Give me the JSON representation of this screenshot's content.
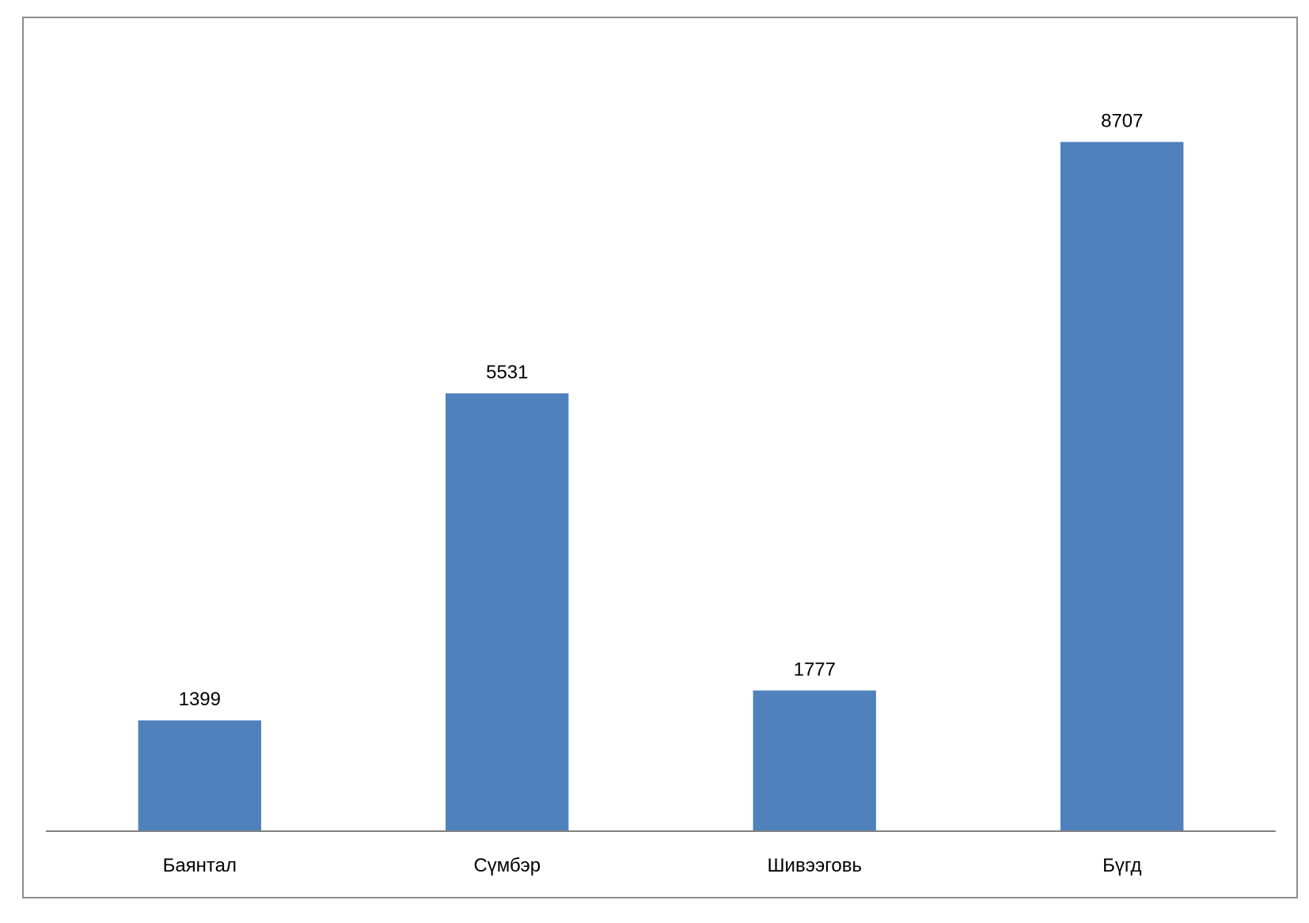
{
  "chart_data": {
    "type": "bar",
    "title": "",
    "xlabel": "",
    "ylabel": "",
    "categories": [
      "Баянтал",
      "Сүмбэр",
      "Шивээговь",
      "Бүгд"
    ],
    "series": [
      {
        "values": [
          1399,
          5531,
          1777,
          8707
        ],
        "color": "#4f81bd"
      }
    ],
    "ylim": [
      0,
      10400
    ],
    "grid": false,
    "legend": "none",
    "data_labels": true,
    "axis_color": "#7f7f7f"
  }
}
